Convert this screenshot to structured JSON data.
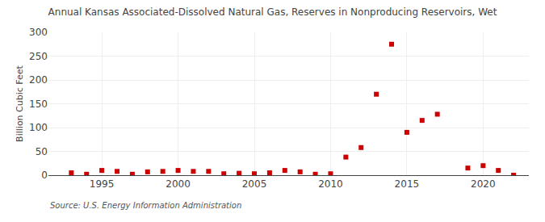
{
  "chart_data": {
    "type": "scatter",
    "title": "Annual Kansas Associated-Dissolved Natural Gas, Reserves in Nonproducing Reservoirs, Wet",
    "ylabel": "Billion Cubic Feet",
    "annotations": [
      "Source: U.S. Energy Information Administration"
    ],
    "x": [
      1993,
      1994,
      1995,
      1996,
      1997,
      1998,
      1999,
      2000,
      2001,
      2002,
      2003,
      2004,
      2005,
      2006,
      2007,
      2008,
      2009,
      2010,
      2011,
      2012,
      2013,
      2014,
      2015,
      2016,
      2017,
      2019,
      2020,
      2021,
      2022
    ],
    "values": [
      5,
      2,
      10,
      8,
      2,
      7,
      8,
      10,
      8,
      8,
      3,
      4,
      3,
      5,
      10,
      7,
      2,
      3,
      38,
      58,
      170,
      275,
      90,
      115,
      128,
      15,
      20,
      10,
      0
    ],
    "color": "#cc0000",
    "marker": "square",
    "xlim": [
      1991.5,
      2023
    ],
    "xticks": [
      1995,
      2000,
      2005,
      2010,
      2015,
      2020
    ],
    "ylim": [
      0,
      300
    ],
    "yticks": [
      0,
      50,
      100,
      150,
      200,
      250,
      300
    ],
    "grid": true
  }
}
